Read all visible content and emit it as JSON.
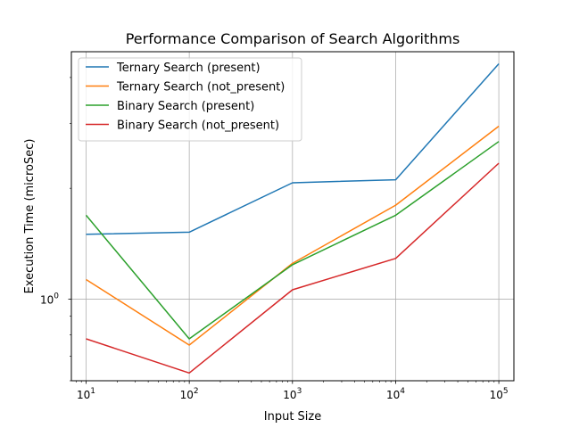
{
  "chart_data": {
    "type": "line",
    "title": "Performance Comparison of Search Algorithms",
    "xlabel": "Input Size",
    "ylabel": "Execution Time (microSec)",
    "xscale": "log",
    "yscale": "log",
    "grid": true,
    "legend_position": "top-left",
    "x": [
      10,
      100,
      1000,
      10000,
      100000
    ],
    "xticks": [
      {
        "value": 10,
        "base": "10",
        "exp": "1"
      },
      {
        "value": 100,
        "base": "10",
        "exp": "2"
      },
      {
        "value": 1000,
        "base": "10",
        "exp": "3"
      },
      {
        "value": 10000,
        "base": "10",
        "exp": "4"
      },
      {
        "value": 100000,
        "base": "10",
        "exp": "5"
      }
    ],
    "yticks": [
      {
        "value": 1,
        "base": "10",
        "exp": "0"
      }
    ],
    "xlim": [
      7.2,
      140000
    ],
    "ylim": [
      0.6,
      4.7
    ],
    "series": [
      {
        "name": "Ternary Search (present)",
        "color": "#1f77b4",
        "values": [
          1.5,
          1.52,
          2.07,
          2.11,
          4.36
        ]
      },
      {
        "name": "Ternary Search (not_present)",
        "color": "#ff7f0e",
        "values": [
          1.13,
          0.75,
          1.25,
          1.8,
          2.95
        ]
      },
      {
        "name": "Binary Search (present)",
        "color": "#2ca02c",
        "values": [
          1.69,
          0.78,
          1.24,
          1.69,
          2.68
        ]
      },
      {
        "name": "Binary Search (not_present)",
        "color": "#d62728",
        "values": [
          0.78,
          0.63,
          1.06,
          1.29,
          2.34
        ]
      }
    ]
  }
}
